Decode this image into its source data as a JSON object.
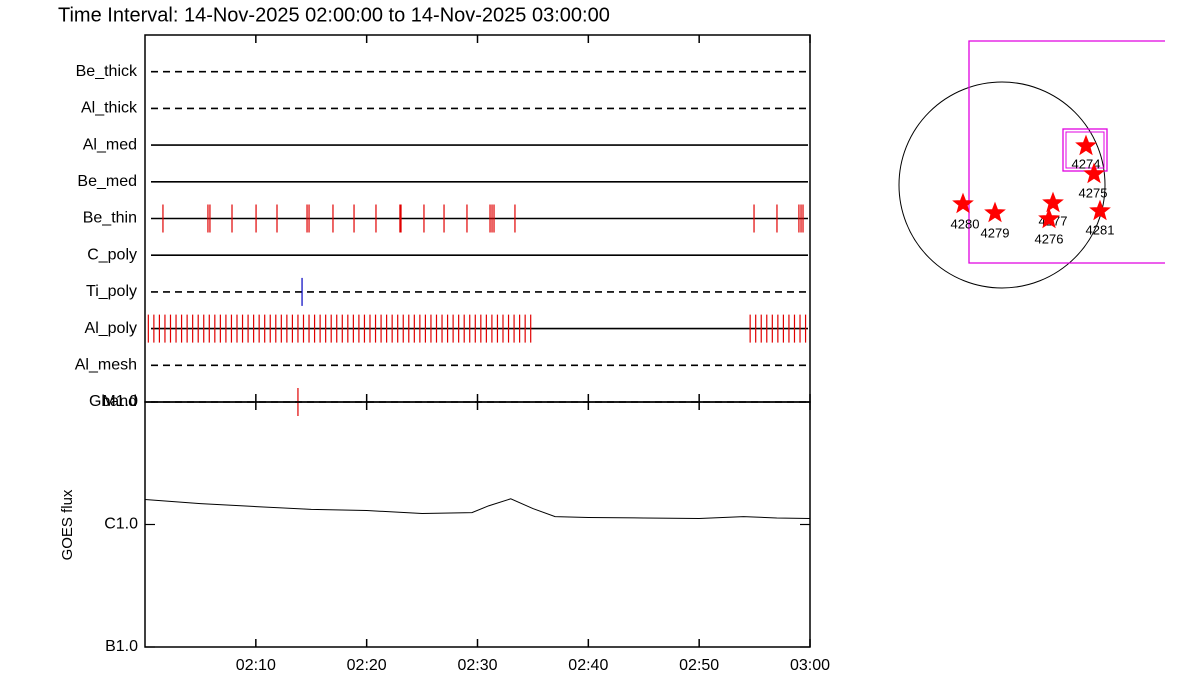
{
  "chart_data": [
    {
      "type": "event",
      "title": "Time Interval: 14-Nov-2025 02:00:00 to 14-Nov-2025 03:00:00",
      "xlim": [
        0,
        60
      ],
      "xticks": [
        {
          "value": 10,
          "label": "02:10"
        },
        {
          "value": 20,
          "label": "02:20"
        },
        {
          "value": 30,
          "label": "02:30"
        },
        {
          "value": 40,
          "label": "02:40"
        },
        {
          "value": 50,
          "label": "02:50"
        },
        {
          "value": 60,
          "label": "03:00"
        }
      ],
      "series": [
        {
          "name": "Be_thick",
          "style": "dashed",
          "color": "#e00000",
          "values": []
        },
        {
          "name": "Al_thick",
          "style": "dashed",
          "color": "#e00000",
          "values": []
        },
        {
          "name": "Al_med",
          "style": "solid",
          "color": "#e00000",
          "values": []
        },
        {
          "name": "Be_med",
          "style": "solid",
          "color": "#e00000",
          "values": []
        },
        {
          "name": "Be_thin",
          "style": "solid",
          "color": "#e00000",
          "values": [
            1.62,
            5.68,
            5.86,
            7.85,
            10.02,
            11.91,
            14.62,
            14.8,
            16.96,
            18.86,
            20.84,
            23.0,
            23.1,
            25.17,
            26.98,
            29.05,
            31.13,
            31.31,
            31.49,
            33.38,
            54.95,
            57.02,
            59.0,
            59.19,
            59.37
          ]
        },
        {
          "name": "C_poly",
          "style": "solid",
          "color": "#e00000",
          "values": []
        },
        {
          "name": "Ti_poly",
          "style": "dashed",
          "color": "#0000c0",
          "values": [
            14.17
          ]
        },
        {
          "name": "Al_poly",
          "style": "solid",
          "color": "#e00000",
          "values": [
            0.3,
            0.8,
            1.3,
            1.8,
            2.3,
            2.8,
            3.3,
            3.8,
            4.3,
            4.8,
            5.3,
            5.8,
            6.3,
            6.8,
            7.3,
            7.8,
            8.3,
            8.8,
            9.3,
            9.8,
            10.3,
            10.8,
            11.3,
            11.8,
            12.3,
            12.8,
            13.3,
            13.8,
            14.3,
            14.8,
            15.3,
            15.8,
            16.3,
            16.8,
            17.3,
            17.8,
            18.3,
            18.8,
            19.3,
            19.8,
            20.3,
            20.8,
            21.3,
            21.8,
            22.3,
            22.8,
            23.3,
            23.8,
            24.3,
            24.8,
            25.3,
            25.8,
            26.3,
            26.8,
            27.3,
            27.8,
            28.3,
            28.8,
            29.3,
            29.8,
            30.3,
            30.8,
            31.3,
            31.8,
            32.3,
            32.8,
            33.3,
            33.8,
            34.3,
            34.8,
            54.6,
            55.1,
            55.6,
            56.1,
            56.6,
            57.1,
            57.6,
            58.1,
            58.6,
            59.1,
            59.6
          ]
        },
        {
          "name": "Al_mesh",
          "style": "dashed",
          "color": "#e00000",
          "values": []
        },
        {
          "name": "Gband",
          "style": "dashed",
          "color": "#e00000",
          "values": [
            13.8
          ]
        }
      ]
    },
    {
      "type": "line",
      "ylabel": "GOES flux",
      "log": true,
      "color": "#000000",
      "xlim": [
        0,
        60
      ],
      "xticks": [
        {
          "value": 10,
          "label": "02:10"
        },
        {
          "value": 20,
          "label": "02:20"
        },
        {
          "value": 30,
          "label": "02:30"
        },
        {
          "value": 40,
          "label": "02:40"
        },
        {
          "value": 50,
          "label": "02:50"
        },
        {
          "value": 60,
          "label": "03:00"
        }
      ],
      "ylim": [
        1e-07,
        1e-05
      ],
      "yticks": [
        {
          "value": 1e-07,
          "label": "B1.0"
        },
        {
          "value": 1e-06,
          "label": "C1.0"
        },
        {
          "value": 1e-05,
          "label": "M1.0"
        }
      ],
      "x": [
        0,
        5,
        10,
        15,
        20,
        25,
        29.5,
        31,
        33,
        35,
        37,
        40,
        45,
        50,
        54,
        57,
        60
      ],
      "values": [
        1.6e-06,
        1.48e-06,
        1.4e-06,
        1.33e-06,
        1.3e-06,
        1.23e-06,
        1.25e-06,
        1.42e-06,
        1.62e-06,
        1.35e-06,
        1.16e-06,
        1.14e-06,
        1.13e-06,
        1.12e-06,
        1.16e-06,
        1.13e-06,
        1.12e-06
      ]
    }
  ],
  "regions": [
    "4274",
    "4275",
    "4277",
    "4276",
    "4281",
    "4280",
    "4279"
  ]
}
